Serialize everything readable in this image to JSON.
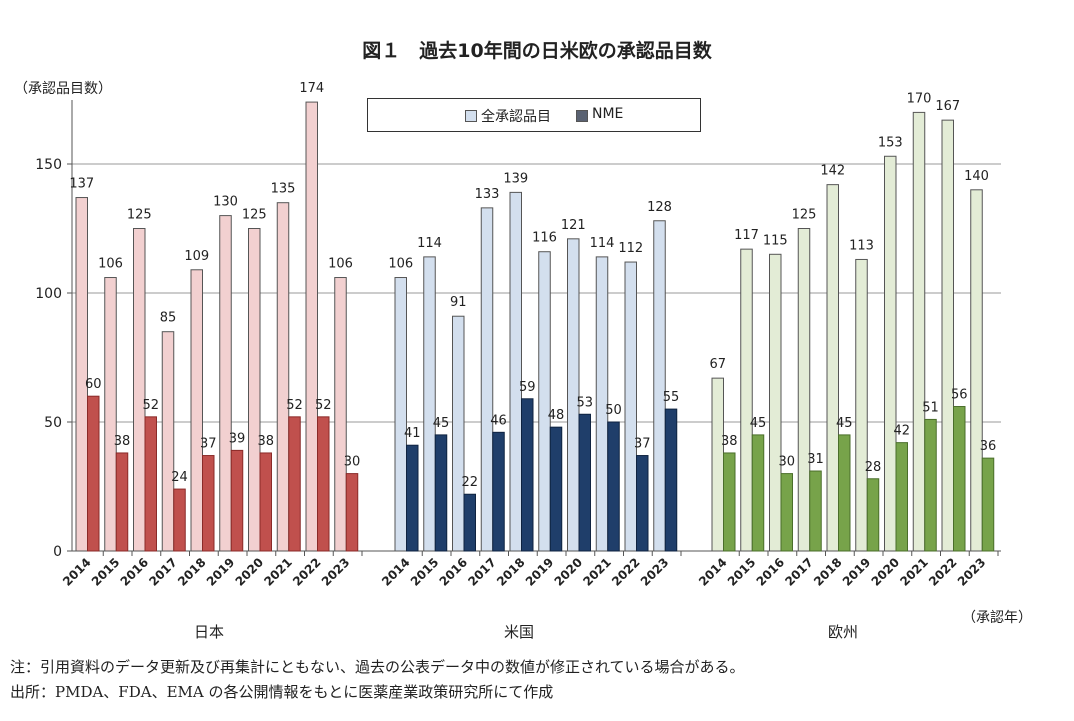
{
  "title": "図１　過去10年間の日米欧の承認品目数",
  "y_axis_label": "（承認品目数）",
  "x_axis_unit": "（承認年）",
  "legend": {
    "all": "全承認品目",
    "nme": "NME"
  },
  "notes": {
    "line1": "注：引用資料のデータ更新及び再集計にともない、過去の公表データ中の数値が修正されている場合がある。",
    "line2": "出所：PMDA、FDA、EMA の各公開情報をもとに医薬産業政策研究所にて作成"
  },
  "colors": {
    "jp_all": "#f2d0d0",
    "jp_nme": "#c0504d",
    "us_all": "#d3dfee",
    "us_nme": "#1f3e6a",
    "eu_all": "#e3ecd6",
    "eu_nme": "#77a34a",
    "grid": "#999999",
    "axis": "#555555"
  },
  "chart_data": {
    "type": "bar",
    "title": "図１　過去10年間の日米欧の承認品目数",
    "ylabel": "（承認品目数）",
    "xlabel": "（承認年）",
    "ylim": [
      0,
      180
    ],
    "yticks": [
      0,
      50,
      100,
      150
    ],
    "grid": true,
    "legend_position": "top-center",
    "years": [
      "2014",
      "2015",
      "2016",
      "2017",
      "2018",
      "2019",
      "2020",
      "2021",
      "2022",
      "2023"
    ],
    "groups": [
      {
        "name": "日本",
        "all": [
          137,
          106,
          125,
          85,
          109,
          130,
          125,
          135,
          174,
          106
        ],
        "nme": [
          60,
          38,
          52,
          24,
          37,
          39,
          38,
          52,
          52,
          30
        ]
      },
      {
        "name": "米国",
        "all": [
          106,
          114,
          91,
          133,
          139,
          116,
          121,
          114,
          112,
          128
        ],
        "nme": [
          41,
          45,
          22,
          46,
          59,
          48,
          53,
          50,
          37,
          55
        ]
      },
      {
        "name": "欧州",
        "all": [
          67,
          117,
          115,
          125,
          142,
          113,
          153,
          170,
          167,
          140
        ],
        "nme": [
          38,
          45,
          30,
          31,
          45,
          28,
          42,
          51,
          56,
          36
        ]
      }
    ]
  }
}
